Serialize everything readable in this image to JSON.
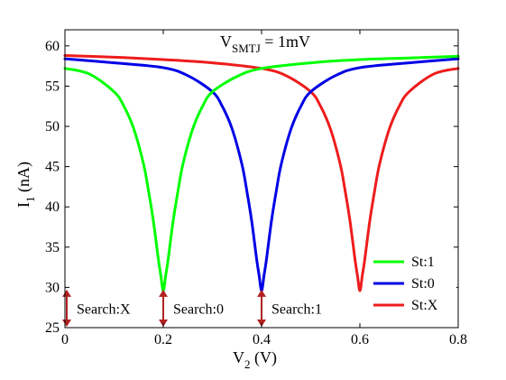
{
  "chart_data": {
    "type": "line",
    "title": {
      "prefix": "V",
      "subscript": "SMTJ",
      "suffix": " = 1mV"
    },
    "xlabel": {
      "prefix": "V",
      "subscript": "2",
      "suffix": " (V)"
    },
    "ylabel": {
      "prefix": "I",
      "subscript": "1",
      "suffix": " (nA)"
    },
    "xlim": [
      0,
      0.8
    ],
    "ylim": [
      25,
      62
    ],
    "xticks": [
      0,
      0.2,
      0.4,
      0.6,
      0.8
    ],
    "xtick_labels": [
      "0",
      "0.2",
      "0.4",
      "0.6",
      "0.8"
    ],
    "yticks": [
      25,
      30,
      35,
      40,
      45,
      50,
      55,
      60
    ],
    "ytick_labels": [
      "25",
      "30",
      "35",
      "40",
      "45",
      "50",
      "55",
      "60"
    ],
    "legend_position": "bottom-right",
    "grid": false,
    "series": [
      {
        "name": "St:1",
        "color": "#00ff00",
        "x": [
          0,
          0.05,
          0.1,
          0.12,
          0.14,
          0.16,
          0.17,
          0.18,
          0.19,
          0.195,
          0.2,
          0.205,
          0.21,
          0.22,
          0.23,
          0.24,
          0.26,
          0.28,
          0.3,
          0.35,
          0.4,
          0.5,
          0.6,
          0.7,
          0.8
        ],
        "y": [
          57.2,
          56.5,
          54.3,
          52.5,
          49.7,
          45.3,
          42.0,
          38.2,
          33.5,
          31.5,
          29.6,
          31.5,
          33.5,
          38.2,
          42.0,
          45.3,
          49.7,
          52.5,
          54.3,
          56.2,
          57.2,
          57.9,
          58.3,
          58.5,
          58.7
        ]
      },
      {
        "name": "St:0",
        "color": "#0000e6",
        "x": [
          0,
          0.1,
          0.2,
          0.25,
          0.3,
          0.32,
          0.34,
          0.36,
          0.37,
          0.38,
          0.39,
          0.395,
          0.4,
          0.405,
          0.41,
          0.42,
          0.43,
          0.44,
          0.46,
          0.48,
          0.5,
          0.55,
          0.6,
          0.7,
          0.8
        ],
        "y": [
          58.4,
          57.9,
          57.3,
          56.3,
          54.3,
          52.5,
          49.7,
          45.3,
          42.0,
          38.2,
          33.5,
          31.5,
          29.6,
          31.5,
          33.5,
          38.2,
          42.0,
          45.3,
          49.7,
          52.5,
          54.3,
          56.3,
          57.3,
          57.9,
          58.4
        ]
      },
      {
        "name": "St:X",
        "color": "#ee1c1c",
        "x": [
          0,
          0.1,
          0.2,
          0.3,
          0.4,
          0.45,
          0.5,
          0.52,
          0.54,
          0.56,
          0.57,
          0.58,
          0.59,
          0.595,
          0.6,
          0.605,
          0.61,
          0.62,
          0.63,
          0.64,
          0.66,
          0.68,
          0.7,
          0.75,
          0.8
        ],
        "y": [
          58.8,
          58.6,
          58.3,
          57.9,
          57.2,
          56.3,
          54.3,
          52.5,
          49.7,
          45.3,
          42.0,
          38.2,
          33.5,
          31.5,
          29.6,
          31.5,
          33.5,
          38.2,
          42.0,
          45.3,
          49.7,
          52.5,
          54.3,
          56.5,
          57.2
        ]
      }
    ],
    "annotations": [
      {
        "label": "Search:X",
        "x": 0.0,
        "y_range": [
          25,
          29.5
        ],
        "color": "#b22222"
      },
      {
        "label": "Search:0",
        "x": 0.2,
        "y_range": [
          25,
          29.5
        ],
        "color": "#b22222"
      },
      {
        "label": "Search:1",
        "x": 0.4,
        "y_range": [
          25,
          29.5
        ],
        "color": "#b22222"
      }
    ]
  }
}
